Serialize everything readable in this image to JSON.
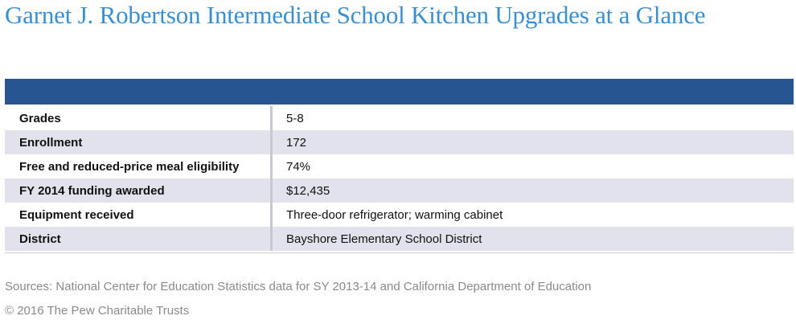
{
  "title": "Garnet J. Robertson Intermediate School Kitchen Upgrades at a Glance",
  "colors": {
    "title": "#3b8fd0",
    "header_bar": "#265591",
    "row_alt": "#e2e2ec"
  },
  "rows": [
    {
      "label": "Grades",
      "value": "5-8"
    },
    {
      "label": "Enrollment",
      "value": "172"
    },
    {
      "label": "Free and reduced-price meal eligibility",
      "value": "74%"
    },
    {
      "label": "FY 2014 funding awarded",
      "value": "$12,435"
    },
    {
      "label": "Equipment received",
      "value": "Three-door refrigerator; warming cabinet"
    },
    {
      "label": "District",
      "value": "Bayshore Elementary School District"
    }
  ],
  "footer": {
    "sources": "Sources: National Center for Education Statistics data for SY 2013-14 and California Department of Education",
    "copyright": "© 2016 The Pew Charitable Trusts"
  }
}
